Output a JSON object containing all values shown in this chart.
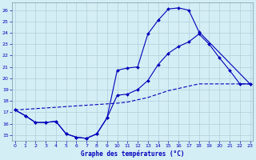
{
  "title": "Graphe des températures (°C)",
  "bg_color": "#d4eef5",
  "grid_color": "#b0d0dc",
  "line_color": "#0000bb",
  "xlim": [
    -0.3,
    23.3
  ],
  "ylim": [
    14.5,
    26.7
  ],
  "x_ticks": [
    0,
    1,
    2,
    3,
    4,
    5,
    6,
    7,
    8,
    9,
    10,
    11,
    12,
    13,
    14,
    15,
    16,
    17,
    18,
    19,
    20,
    21,
    22,
    23
  ],
  "yticks": [
    15,
    16,
    17,
    18,
    19,
    20,
    21,
    22,
    23,
    24,
    25,
    26
  ],
  "curve1_x": [
    0,
    1,
    2,
    3,
    4,
    5,
    6,
    7,
    8,
    9,
    10,
    11,
    12,
    13,
    14,
    15,
    16,
    17,
    18,
    23
  ],
  "curve1_y": [
    17.2,
    16.7,
    16.1,
    16.1,
    16.2,
    15.1,
    14.8,
    14.7,
    15.1,
    16.5,
    20.7,
    20.9,
    21.0,
    23.9,
    25.1,
    26.1,
    26.2,
    26.0,
    24.1,
    19.5
  ],
  "curve2_x": [
    0,
    1,
    2,
    3,
    4,
    5,
    6,
    7,
    8,
    9,
    10,
    11,
    12,
    13,
    14,
    15,
    16,
    17,
    18,
    19,
    20,
    21,
    22,
    23
  ],
  "curve2_y": [
    17.2,
    16.7,
    16.1,
    16.1,
    16.2,
    15.1,
    14.8,
    14.7,
    15.1,
    16.5,
    18.5,
    18.6,
    19.0,
    19.8,
    21.2,
    22.2,
    22.8,
    23.2,
    23.9,
    23.0,
    21.8,
    20.7,
    19.5,
    19.5
  ],
  "curve3_x": [
    0,
    10,
    11,
    12,
    13,
    14,
    15,
    16,
    17,
    18,
    19,
    20,
    21,
    22,
    23
  ],
  "curve3_y": [
    17.2,
    17.8,
    17.9,
    18.1,
    18.3,
    18.6,
    18.9,
    19.1,
    19.3,
    19.5,
    19.5,
    19.5,
    19.5,
    19.5,
    19.5
  ]
}
